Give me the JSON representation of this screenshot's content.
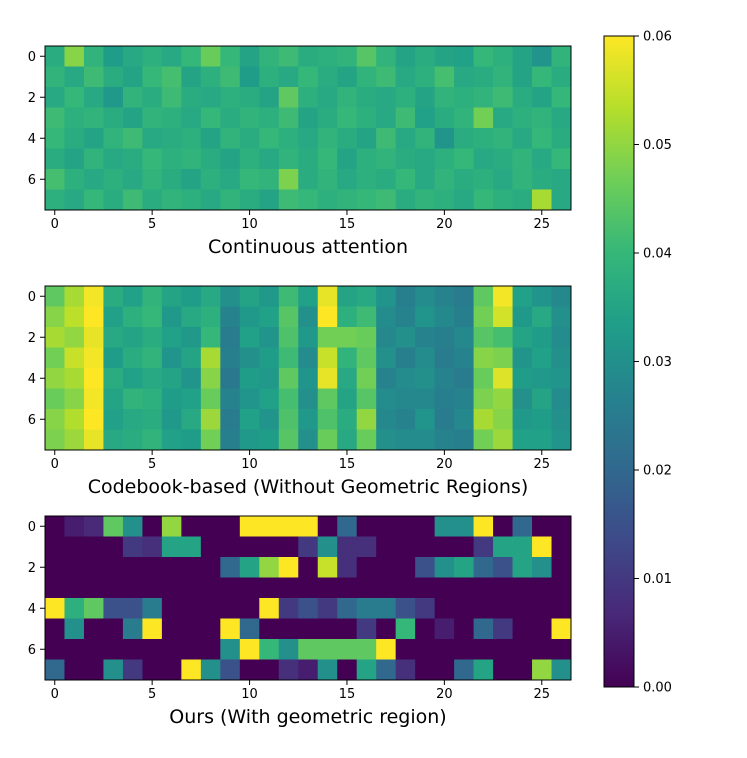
{
  "chart_data": {
    "type": "heatmap",
    "colormap": "viridis",
    "colorbar": {
      "range": [
        0.0,
        0.06
      ],
      "ticks": [
        "0.00",
        "0.01",
        "0.02",
        "0.03",
        "0.04",
        "0.05",
        "0.06"
      ],
      "tick_values": [
        0.0,
        0.01,
        0.02,
        0.03,
        0.04,
        0.05,
        0.06
      ]
    },
    "panels": [
      {
        "title": "Continuous attention",
        "rows": 8,
        "cols": 27,
        "xticks": [
          "0",
          "5",
          "10",
          "15",
          "20",
          "25"
        ],
        "xtick_values": [
          0,
          5,
          10,
          15,
          20,
          25
        ],
        "yticks": [
          "0",
          "2",
          "4",
          "6"
        ],
        "ytick_values": [
          0,
          2,
          4,
          6
        ],
        "values": [
          [
            0.037,
            0.049,
            0.039,
            0.033,
            0.036,
            0.038,
            0.036,
            0.04,
            0.046,
            0.04,
            0.035,
            0.039,
            0.041,
            0.037,
            0.038,
            0.039,
            0.044,
            0.039,
            0.035,
            0.037,
            0.035,
            0.034,
            0.04,
            0.038,
            0.035,
            0.031,
            0.039
          ],
          [
            0.039,
            0.036,
            0.041,
            0.037,
            0.035,
            0.04,
            0.042,
            0.035,
            0.038,
            0.041,
            0.033,
            0.038,
            0.036,
            0.04,
            0.037,
            0.035,
            0.039,
            0.041,
            0.036,
            0.038,
            0.042,
            0.036,
            0.037,
            0.039,
            0.035,
            0.04,
            0.037
          ],
          [
            0.036,
            0.04,
            0.036,
            0.032,
            0.039,
            0.037,
            0.041,
            0.037,
            0.036,
            0.038,
            0.037,
            0.035,
            0.045,
            0.038,
            0.036,
            0.039,
            0.037,
            0.036,
            0.038,
            0.035,
            0.039,
            0.038,
            0.039,
            0.041,
            0.037,
            0.035,
            0.04
          ],
          [
            0.041,
            0.038,
            0.039,
            0.037,
            0.035,
            0.039,
            0.038,
            0.036,
            0.04,
            0.037,
            0.039,
            0.038,
            0.041,
            0.035,
            0.037,
            0.04,
            0.038,
            0.036,
            0.041,
            0.034,
            0.037,
            0.039,
            0.047,
            0.036,
            0.038,
            0.039,
            0.036
          ],
          [
            0.04,
            0.037,
            0.035,
            0.039,
            0.041,
            0.036,
            0.037,
            0.038,
            0.035,
            0.039,
            0.037,
            0.04,
            0.038,
            0.036,
            0.039,
            0.037,
            0.035,
            0.041,
            0.036,
            0.039,
            0.031,
            0.037,
            0.038,
            0.039,
            0.036,
            0.04,
            0.037
          ],
          [
            0.037,
            0.035,
            0.039,
            0.036,
            0.037,
            0.04,
            0.038,
            0.039,
            0.037,
            0.035,
            0.038,
            0.036,
            0.039,
            0.037,
            0.04,
            0.035,
            0.038,
            0.039,
            0.037,
            0.036,
            0.038,
            0.04,
            0.036,
            0.037,
            0.039,
            0.036,
            0.04
          ],
          [
            0.042,
            0.038,
            0.036,
            0.038,
            0.036,
            0.039,
            0.037,
            0.035,
            0.038,
            0.036,
            0.04,
            0.039,
            0.048,
            0.037,
            0.039,
            0.036,
            0.038,
            0.037,
            0.04,
            0.036,
            0.039,
            0.037,
            0.038,
            0.036,
            0.039,
            0.037,
            0.036
          ],
          [
            0.038,
            0.036,
            0.04,
            0.037,
            0.041,
            0.037,
            0.039,
            0.038,
            0.036,
            0.039,
            0.037,
            0.035,
            0.041,
            0.04,
            0.038,
            0.039,
            0.04,
            0.041,
            0.037,
            0.039,
            0.038,
            0.036,
            0.04,
            0.038,
            0.037,
            0.052,
            0.036
          ]
        ]
      },
      {
        "title": "Codebook-based (Without Geometric Regions)",
        "rows": 8,
        "cols": 27,
        "xticks": [
          "0",
          "5",
          "10",
          "15",
          "20",
          "25"
        ],
        "xtick_values": [
          0,
          5,
          10,
          15,
          20,
          25
        ],
        "yticks": [
          "0",
          "2",
          "4",
          "6"
        ],
        "ytick_values": [
          0,
          2,
          4,
          6
        ],
        "values": [
          [
            0.045,
            0.052,
            0.059,
            0.037,
            0.034,
            0.039,
            0.035,
            0.033,
            0.036,
            0.03,
            0.035,
            0.032,
            0.041,
            0.034,
            0.058,
            0.035,
            0.036,
            0.031,
            0.026,
            0.029,
            0.027,
            0.025,
            0.045,
            0.059,
            0.034,
            0.031,
            0.028
          ],
          [
            0.049,
            0.054,
            0.06,
            0.034,
            0.038,
            0.04,
            0.032,
            0.036,
            0.038,
            0.027,
            0.032,
            0.034,
            0.044,
            0.03,
            0.06,
            0.038,
            0.041,
            0.029,
            0.027,
            0.031,
            0.028,
            0.026,
            0.047,
            0.056,
            0.032,
            0.036,
            0.03
          ],
          [
            0.052,
            0.05,
            0.058,
            0.036,
            0.035,
            0.037,
            0.034,
            0.032,
            0.04,
            0.025,
            0.034,
            0.031,
            0.043,
            0.032,
            0.047,
            0.047,
            0.046,
            0.028,
            0.03,
            0.027,
            0.026,
            0.028,
            0.044,
            0.042,
            0.035,
            0.033,
            0.029
          ],
          [
            0.047,
            0.055,
            0.059,
            0.033,
            0.037,
            0.039,
            0.031,
            0.035,
            0.052,
            0.026,
            0.03,
            0.033,
            0.041,
            0.029,
            0.055,
            0.039,
            0.045,
            0.03,
            0.026,
            0.029,
            0.025,
            0.027,
            0.049,
            0.048,
            0.031,
            0.034,
            0.03
          ],
          [
            0.05,
            0.052,
            0.06,
            0.037,
            0.034,
            0.036,
            0.035,
            0.031,
            0.049,
            0.024,
            0.033,
            0.032,
            0.045,
            0.031,
            0.058,
            0.036,
            0.047,
            0.027,
            0.029,
            0.03,
            0.027,
            0.025,
            0.046,
            0.057,
            0.033,
            0.032,
            0.031
          ],
          [
            0.046,
            0.049,
            0.059,
            0.035,
            0.039,
            0.038,
            0.033,
            0.034,
            0.046,
            0.027,
            0.031,
            0.034,
            0.042,
            0.03,
            0.045,
            0.035,
            0.044,
            0.029,
            0.028,
            0.028,
            0.026,
            0.027,
            0.048,
            0.05,
            0.03,
            0.035,
            0.029
          ],
          [
            0.049,
            0.053,
            0.06,
            0.034,
            0.036,
            0.037,
            0.032,
            0.036,
            0.051,
            0.025,
            0.034,
            0.031,
            0.043,
            0.032,
            0.043,
            0.037,
            0.05,
            0.028,
            0.027,
            0.031,
            0.025,
            0.028,
            0.052,
            0.049,
            0.032,
            0.033,
            0.03
          ],
          [
            0.048,
            0.051,
            0.058,
            0.036,
            0.037,
            0.039,
            0.034,
            0.033,
            0.047,
            0.026,
            0.032,
            0.033,
            0.044,
            0.03,
            0.046,
            0.036,
            0.046,
            0.03,
            0.029,
            0.029,
            0.027,
            0.026,
            0.047,
            0.051,
            0.034,
            0.034,
            0.031
          ]
        ]
      },
      {
        "title": "Ours (With geometric region)",
        "rows": 8,
        "cols": 27,
        "xticks": [
          "0",
          "5",
          "10",
          "15",
          "20",
          "25"
        ],
        "xtick_values": [
          0,
          5,
          10,
          15,
          20,
          25
        ],
        "yticks": [
          "0",
          "2",
          "4",
          "6"
        ],
        "ytick_values": [
          0,
          2,
          4,
          6
        ],
        "values": [
          [
            0.0,
            0.005,
            0.007,
            0.045,
            0.03,
            0.0,
            0.05,
            0.0,
            0.0,
            0.0,
            0.06,
            0.06,
            0.06,
            0.06,
            0.0,
            0.02,
            0.0,
            0.0,
            0.0,
            0.0,
            0.03,
            0.03,
            0.06,
            0.0,
            0.02,
            0.0,
            0.0
          ],
          [
            0.0,
            0.0,
            0.0,
            0.0,
            0.01,
            0.008,
            0.035,
            0.035,
            0.0,
            0.0,
            0.0,
            0.0,
            0.0,
            0.01,
            0.03,
            0.008,
            0.008,
            0.0,
            0.0,
            0.0,
            0.0,
            0.0,
            0.01,
            0.035,
            0.035,
            0.06,
            0.0
          ],
          [
            0.0,
            0.0,
            0.0,
            0.0,
            0.0,
            0.0,
            0.0,
            0.0,
            0.0,
            0.02,
            0.035,
            0.05,
            0.06,
            0.0,
            0.055,
            0.008,
            0.0,
            0.0,
            0.0,
            0.015,
            0.03,
            0.035,
            0.02,
            0.015,
            0.035,
            0.03,
            0.0
          ],
          [
            0.0,
            0.0,
            0.0,
            0.0,
            0.0,
            0.0,
            0.0,
            0.0,
            0.0,
            0.0,
            0.0,
            0.0,
            0.0,
            0.0,
            0.0,
            0.0,
            0.0,
            0.0,
            0.0,
            0.0,
            0.0,
            0.0,
            0.0,
            0.0,
            0.0,
            0.0,
            0.0
          ],
          [
            0.06,
            0.038,
            0.045,
            0.015,
            0.015,
            0.025,
            0.0,
            0.0,
            0.0,
            0.0,
            0.0,
            0.06,
            0.01,
            0.015,
            0.01,
            0.02,
            0.025,
            0.025,
            0.015,
            0.01,
            0.0,
            0.0,
            0.0,
            0.0,
            0.0,
            0.0,
            0.0
          ],
          [
            0.0,
            0.03,
            0.0,
            0.0,
            0.025,
            0.06,
            0.0,
            0.0,
            0.0,
            0.06,
            0.02,
            0.0,
            0.0,
            0.0,
            0.0,
            0.0,
            0.01,
            0.0,
            0.04,
            0.0,
            0.005,
            0.0,
            0.02,
            0.01,
            0.0,
            0.0,
            0.06
          ],
          [
            0.0,
            0.0,
            0.0,
            0.0,
            0.0,
            0.0,
            0.0,
            0.0,
            0.0,
            0.03,
            0.06,
            0.04,
            0.03,
            0.045,
            0.045,
            0.045,
            0.045,
            0.06,
            0.0,
            0.0,
            0.0,
            0.0,
            0.0,
            0.0,
            0.0,
            0.0,
            0.0
          ],
          [
            0.02,
            0.0,
            0.0,
            0.03,
            0.01,
            0.0,
            0.0,
            0.06,
            0.03,
            0.015,
            0.0,
            0.0,
            0.008,
            0.005,
            0.03,
            0.0,
            0.035,
            0.02,
            0.008,
            0.0,
            0.0,
            0.02,
            0.035,
            0.0,
            0.0,
            0.05,
            0.03
          ]
        ]
      }
    ]
  }
}
